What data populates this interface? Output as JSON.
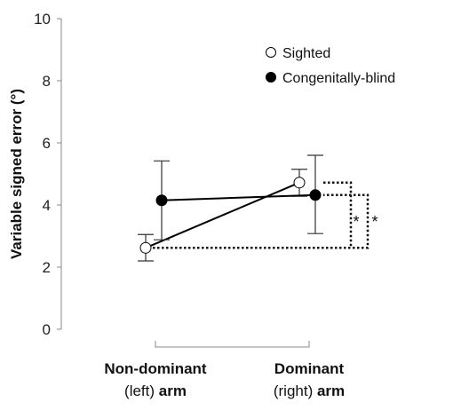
{
  "chart_data": {
    "type": "line",
    "title": "",
    "ylabel": "Variable signed error (°)",
    "ylim": [
      0,
      10
    ],
    "yticks": [
      0,
      2,
      4,
      6,
      8,
      10
    ],
    "grid": false,
    "legend_position": "top-right",
    "categories": [
      {
        "line1": "Non-dominant",
        "line2_normal": "(left) ",
        "line2_bold": "arm"
      },
      {
        "line1": "Dominant",
        "line2_normal": "(right) ",
        "line2_bold": "arm"
      }
    ],
    "series": [
      {
        "name": "Sighted",
        "marker": "open-circle",
        "color": "#000000",
        "values": [
          2.62,
          4.72
        ],
        "error_low": [
          2.2,
          4.28
        ],
        "error_high": [
          3.05,
          5.15
        ]
      },
      {
        "name": "Congenitally-blind",
        "marker": "filled-circle",
        "color": "#000000",
        "values": [
          4.15,
          4.32
        ],
        "error_low": [
          2.88,
          3.08
        ],
        "error_high": [
          5.42,
          5.6
        ]
      }
    ],
    "significance": [
      {
        "series": "Sighted",
        "label": "*"
      },
      {
        "series": "Congenitally-blind",
        "label": "*"
      }
    ]
  }
}
